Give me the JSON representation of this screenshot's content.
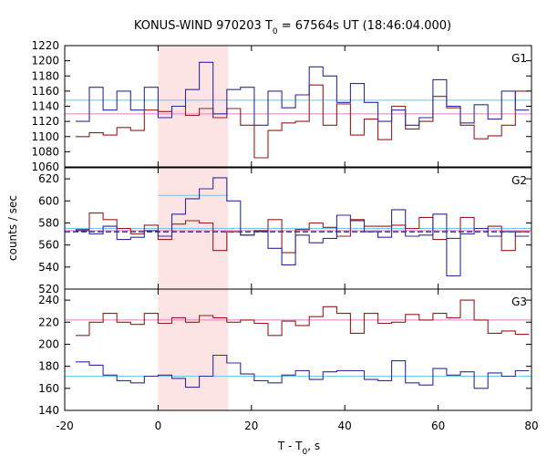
{
  "chart_data": {
    "type": "line",
    "title": {
      "prefix": "KONUS-WIND 970203 T",
      "sub": "0",
      "suffix": " = 67564s UT (18:46:04.000)"
    },
    "xlabel": {
      "prefix": "T - T",
      "sub": "0",
      "suffix": ", s"
    },
    "ylabel": "counts / sec",
    "xlim": [
      -20,
      80
    ],
    "xticks": [
      "-20",
      "0",
      "20",
      "40",
      "60",
      "80"
    ],
    "shaded_interval": [
      0,
      15
    ],
    "bin_width": 2.944,
    "bin_start": -17.664,
    "colors": {
      "red": "#9b1b1b",
      "blue": "#2d2d9e",
      "cyan_bg": "#6ec8e8",
      "pink_bg": "#e87bc8",
      "navy_bg": "#1a1a8c",
      "shade": "#fde4e4"
    },
    "panels": [
      {
        "label": "G1",
        "ylim": [
          1060,
          1220
        ],
        "yticks": [
          1060,
          1080,
          1100,
          1120,
          1140,
          1160,
          1180,
          1200,
          1220
        ],
        "backgrounds": [
          {
            "color": "cyan_bg",
            "value": 1148,
            "dashed": false
          },
          {
            "color": "pink_bg",
            "value": 1130,
            "dashed": false
          }
        ],
        "series": [
          {
            "color": "red",
            "values": [
              1100,
              1105,
              1102,
              1112,
              1108,
              1135,
              1133,
              1140,
              1128,
              1137,
              1125,
              1137,
              1115,
              1072,
              1108,
              1118,
              1120,
              1168,
              1115,
              1143,
              1102,
              1123,
              1096,
              1140,
              1110,
              1120,
              1153,
              1138,
              1115,
              1097,
              1101,
              1115,
              1160
            ]
          },
          {
            "color": "blue",
            "values": [
              1120,
              1165,
              1135,
              1160,
              1135,
              1165,
              1125,
              1140,
              1162,
              1198,
              1130,
              1162,
              1165,
              1115,
              1160,
              1138,
              1155,
              1192,
              1180,
              1145,
              1170,
              1145,
              1120,
              1135,
              1115,
              1125,
              1175,
              1140,
              1118,
              1142,
              1123,
              1160,
              1135
            ]
          }
        ]
      },
      {
        "label": "G2",
        "ylim": [
          520,
          630
        ],
        "yticks": [
          520,
          540,
          560,
          580,
          600,
          620
        ],
        "backgrounds": [
          {
            "color": "cyan_bg",
            "value": 575,
            "dashed": false
          },
          {
            "color": "navy_bg",
            "value": 572,
            "dashed": true
          },
          {
            "color": "pink_bg",
            "value": 573,
            "dashed": false
          }
        ],
        "series": [
          {
            "color": "red",
            "values": [
              574,
              589,
              583,
              575,
              570,
              578,
              565,
              579,
              582,
              580,
              555,
              572,
              569,
              573,
              583,
              553,
              574,
              580,
              576,
              568,
              583,
              577,
              577,
              578,
              575,
              585,
              565,
              566,
              585,
              575,
              577,
              555,
              572
            ]
          },
          {
            "color": "blue",
            "values": [
              573,
              570,
              577,
              565,
              567,
              573,
              568,
              588,
              602,
              611,
              621,
              600,
              569,
              572,
              557,
              542,
              569,
              562,
              566,
              587,
              582,
              572,
              567,
              592,
              568,
              569,
              588,
              532,
              570,
              575,
              568,
              572,
              568
            ]
          }
        ]
      },
      {
        "label": "G3",
        "ylim": [
          140,
          250
        ],
        "yticks": [
          140,
          160,
          180,
          200,
          220,
          240
        ],
        "backgrounds": [
          {
            "color": "cyan_bg",
            "value": 171,
            "dashed": false
          },
          {
            "color": "pink_bg",
            "value": 222,
            "dashed": false
          }
        ],
        "series": [
          {
            "color": "red",
            "values": [
              208,
              220,
              228,
              220,
              218,
              228,
              219,
              224,
              220,
              226,
              224,
              220,
              222,
              219,
              208,
              221,
              217,
              225,
              234,
              228,
              210,
              228,
              219,
              220,
              227,
              222,
              228,
              224,
              240,
              222,
              210,
              212,
              209
            ]
          },
          {
            "color": "blue",
            "values": [
              184,
              181,
              172,
              167,
              165,
              171,
              172,
              169,
              161,
              171,
              190,
              183,
              173,
              167,
              165,
              172,
              176,
              168,
              175,
              176,
              176,
              168,
              167,
              185,
              165,
              163,
              178,
              172,
              175,
              160,
              174,
              171,
              176
            ]
          }
        ]
      }
    ]
  }
}
